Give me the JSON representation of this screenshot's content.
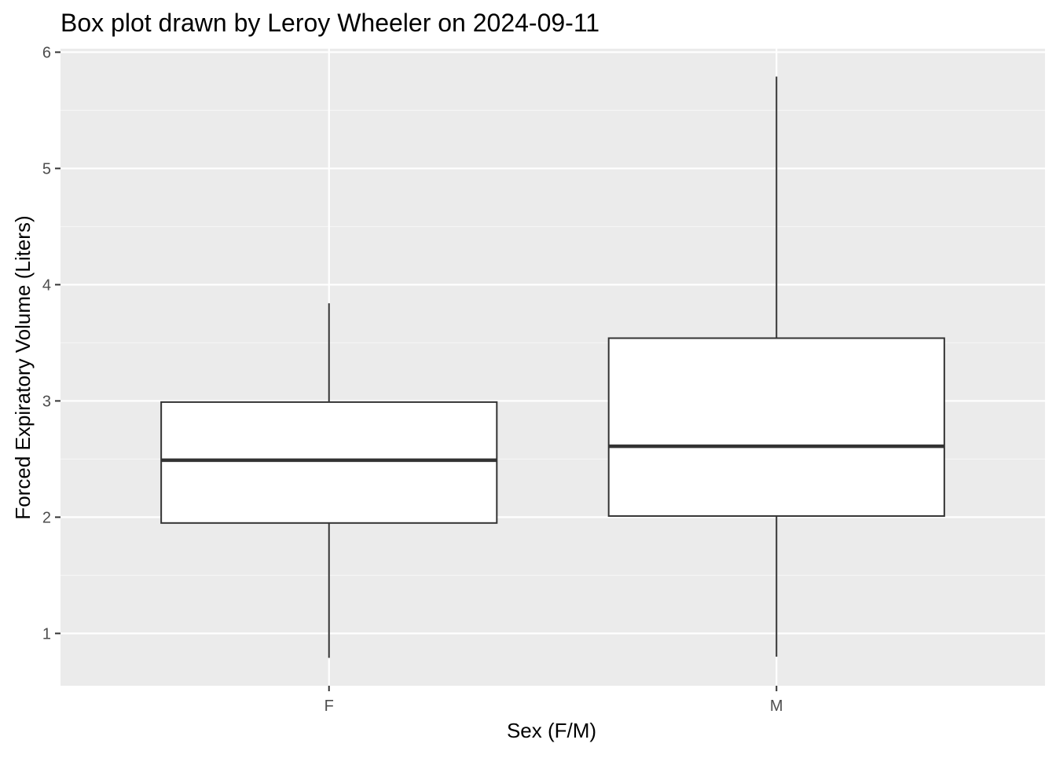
{
  "chart_data": {
    "type": "box",
    "title": "Box plot drawn by Leroy Wheeler on 2024-09-11",
    "xlabel": "Sex (F/M)",
    "ylabel": "Forced Expiratory Volume (Liters)",
    "categories": [
      "F",
      "M"
    ],
    "boxes": [
      {
        "category": "F",
        "whisker_low": 0.79,
        "q1": 1.95,
        "median": 2.49,
        "q3": 2.99,
        "whisker_high": 3.84
      },
      {
        "category": "M",
        "whisker_low": 0.8,
        "q1": 2.01,
        "median": 2.61,
        "q3": 3.54,
        "whisker_high": 5.79
      }
    ],
    "ylim": [
      0.55,
      6.03
    ],
    "yticks": [
      1,
      2,
      3,
      4,
      5,
      6
    ],
    "grid": true,
    "legend": "none",
    "colors": {
      "panel_background": "#ebebeb",
      "grid_major": "#ffffff",
      "grid_minor": "#f5f5f5",
      "box_fill": "#ffffff",
      "box_stroke": "#333333",
      "tick_text": "#4d4d4d",
      "tick_mark": "#333333"
    }
  }
}
